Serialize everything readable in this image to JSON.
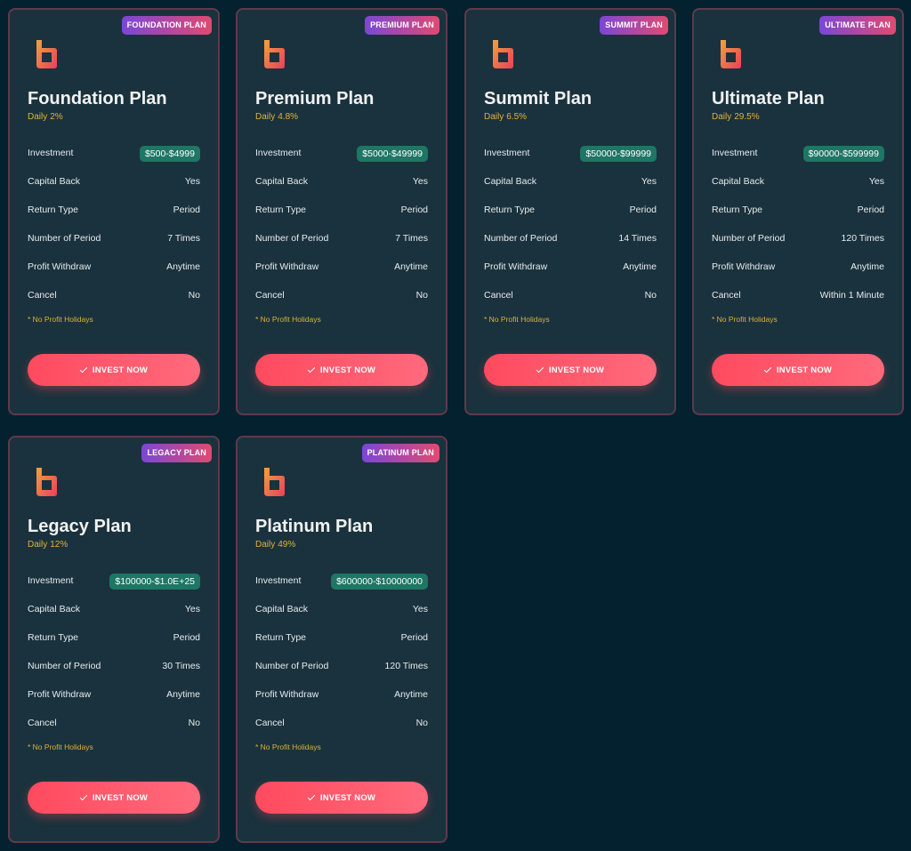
{
  "colors": {
    "background": "#04212f",
    "card": "#1a323d",
    "card_border": "#5e3a4b",
    "accent_pink": "#ff4a5e",
    "accent_purple": "#7b47d6",
    "daily_text": "#e0b33a",
    "pill": "#1e7664"
  },
  "plans": [
    {
      "badge": "FOUNDATION PLAN",
      "title": "Foundation Plan",
      "daily_label": "Daily",
      "daily_rate": "2%",
      "investment_label": "Investment",
      "investment_range": "$500-$4999",
      "capital_back_label": "Capital Back",
      "capital_back": "Yes",
      "return_type_label": "Return Type",
      "return_type": "Period",
      "periods_label": "Number of Period",
      "periods": "7 Times",
      "withdraw_label": "Profit Withdraw",
      "withdraw": "Anytime",
      "cancel_label": "Cancel",
      "cancel": "No",
      "note": "* No Profit Holidays",
      "button_label": "INVEST NOW"
    },
    {
      "badge": "PREMIUM PLAN",
      "title": "Premium Plan",
      "daily_label": "Daily",
      "daily_rate": "4.8%",
      "investment_label": "Investment",
      "investment_range": "$5000-$49999",
      "capital_back_label": "Capital Back",
      "capital_back": "Yes",
      "return_type_label": "Return Type",
      "return_type": "Period",
      "periods_label": "Number of Period",
      "periods": "7 Times",
      "withdraw_label": "Profit Withdraw",
      "withdraw": "Anytime",
      "cancel_label": "Cancel",
      "cancel": "No",
      "note": "* No Profit Holidays",
      "button_label": "INVEST NOW"
    },
    {
      "badge": "SUMMIT PLAN",
      "title": "Summit Plan",
      "daily_label": "Daily",
      "daily_rate": "6.5%",
      "investment_label": "Investment",
      "investment_range": "$50000-$99999",
      "capital_back_label": "Capital Back",
      "capital_back": "Yes",
      "return_type_label": "Return Type",
      "return_type": "Period",
      "periods_label": "Number of Period",
      "periods": "14 Times",
      "withdraw_label": "Profit Withdraw",
      "withdraw": "Anytime",
      "cancel_label": "Cancel",
      "cancel": "No",
      "note": "* No Profit Holidays",
      "button_label": "INVEST NOW"
    },
    {
      "badge": "ULTIMATE PLAN",
      "title": "Ultimate Plan",
      "daily_label": "Daily",
      "daily_rate": "29.5%",
      "investment_label": "Investment",
      "investment_range": "$90000-$599999",
      "capital_back_label": "Capital Back",
      "capital_back": "Yes",
      "return_type_label": "Return Type",
      "return_type": "Period",
      "periods_label": "Number of Period",
      "periods": "120 Times",
      "withdraw_label": "Profit Withdraw",
      "withdraw": "Anytime",
      "cancel_label": "Cancel",
      "cancel": "Within 1 Minute",
      "note": "* No Profit Holidays",
      "button_label": "INVEST NOW"
    },
    {
      "badge": "LEGACY PLAN",
      "title": "Legacy Plan",
      "daily_label": "Daily",
      "daily_rate": "12%",
      "investment_label": "Investment",
      "investment_range": "$100000-$1.0E+25",
      "capital_back_label": "Capital Back",
      "capital_back": "Yes",
      "return_type_label": "Return Type",
      "return_type": "Period",
      "periods_label": "Number of Period",
      "periods": "30 Times",
      "withdraw_label": "Profit Withdraw",
      "withdraw": "Anytime",
      "cancel_label": "Cancel",
      "cancel": "No",
      "note": "* No Profit Holidays",
      "button_label": "INVEST NOW"
    },
    {
      "badge": "PLATINUM PLAN",
      "title": "Platinum Plan",
      "daily_label": "Daily",
      "daily_rate": "49%",
      "investment_label": "Investment",
      "investment_range": "$600000-$10000000",
      "capital_back_label": "Capital Back",
      "capital_back": "Yes",
      "return_type_label": "Return Type",
      "return_type": "Period",
      "periods_label": "Number of Period",
      "periods": "120 Times",
      "withdraw_label": "Profit Withdraw",
      "withdraw": "Anytime",
      "cancel_label": "Cancel",
      "cancel": "No",
      "note": "* No Profit Holidays",
      "button_label": "INVEST NOW"
    }
  ]
}
